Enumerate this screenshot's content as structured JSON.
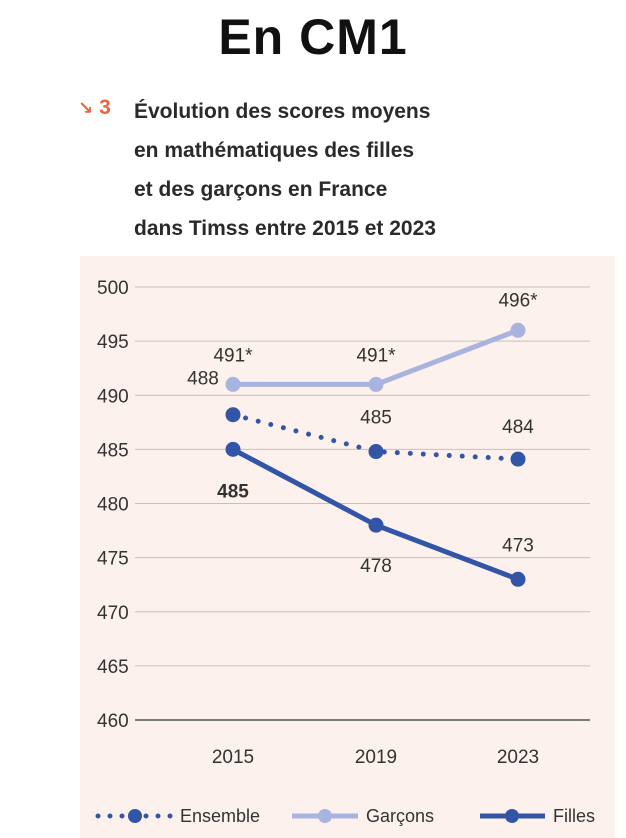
{
  "heading": "En CM1",
  "figure": {
    "arrow_icon": "arrow-down-right-icon",
    "number": "3",
    "title_lines": [
      "Évolution des scores moyens",
      "en mathématiques des filles",
      "et des garçons en France",
      "dans Timss entre 2015 et 2023"
    ]
  },
  "chart_data": {
    "type": "line",
    "x": [
      "2015",
      "2019",
      "2023"
    ],
    "ylim": [
      460,
      500
    ],
    "yticks": [
      500,
      495,
      490,
      485,
      480,
      475,
      470,
      465,
      460
    ],
    "grid": true,
    "legend_position": "bottom",
    "background_color": "#fcf1ec",
    "series": [
      {
        "name": "Ensemble",
        "values": [
          488.2,
          484.8,
          484.1
        ],
        "labels": [
          "488",
          "485",
          "484"
        ],
        "style": "dotted",
        "color": "#3355a8"
      },
      {
        "name": "Garçons",
        "values": [
          491,
          491,
          496
        ],
        "labels": [
          "491*",
          "491*",
          "496*"
        ],
        "style": "solid",
        "color": "#a9b3e0"
      },
      {
        "name": "Filles",
        "values": [
          485,
          478,
          473
        ],
        "labels": [
          "485",
          "478",
          "473"
        ],
        "style": "solid",
        "color": "#3355a8"
      }
    ]
  }
}
